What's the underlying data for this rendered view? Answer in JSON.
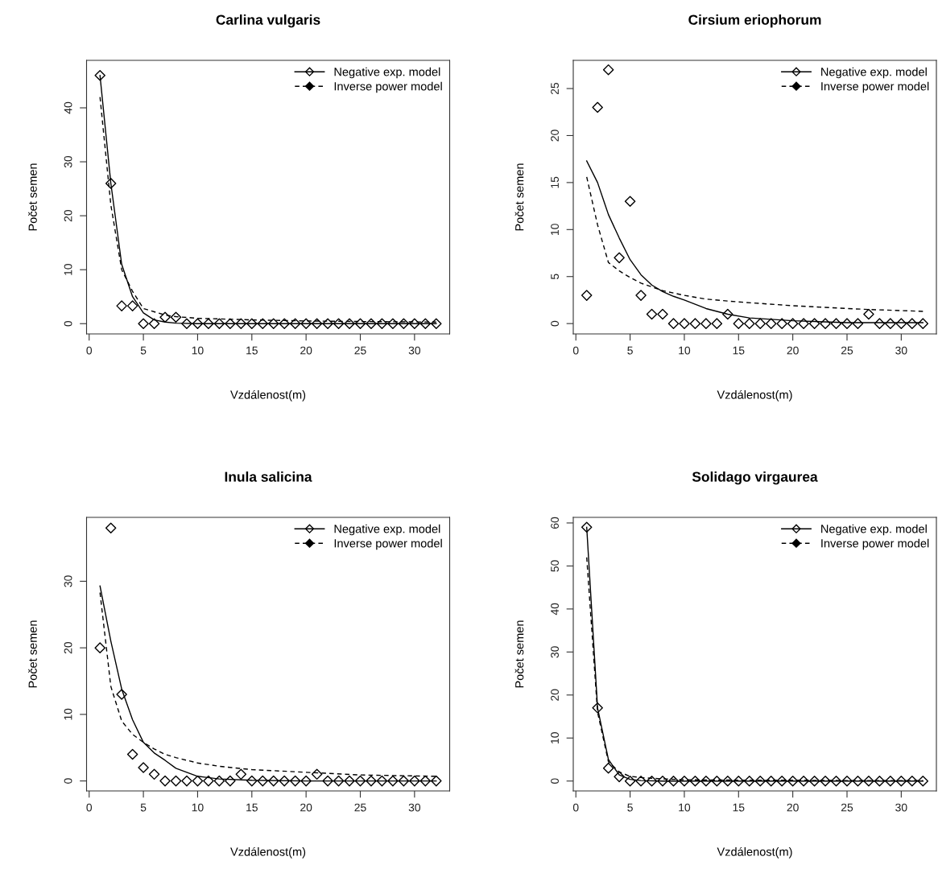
{
  "chart_data": [
    {
      "type": "line",
      "title": "Carlina vulgaris",
      "xlabel": "Vzdálenost(m)",
      "ylabel": "Počet semen",
      "xlim": [
        -0.24,
        33.24
      ],
      "xticks": [
        0,
        5,
        10,
        15,
        20,
        25,
        30
      ],
      "ylim": [
        -1.9,
        48.8
      ],
      "yticks": [
        0,
        10,
        20,
        30,
        40
      ],
      "grid": false,
      "legend": "top right",
      "series": [
        {
          "type": "scatter",
          "marker": "diamond",
          "color": "#000000",
          "x": [
            1,
            2,
            3,
            4,
            5,
            6,
            7,
            8,
            9,
            10,
            11,
            12,
            13,
            14,
            15,
            16,
            17,
            18,
            19,
            20,
            21,
            22,
            23,
            24,
            25,
            26,
            27,
            28,
            29,
            30,
            31,
            32
          ],
          "values": [
            46,
            26,
            3.3,
            3.3,
            0,
            0,
            1.2,
            1.2,
            0,
            0,
            0,
            0,
            0,
            0,
            0,
            0,
            0,
            0,
            0,
            0,
            0,
            0,
            0,
            0,
            0,
            0,
            0,
            0,
            0,
            0,
            0,
            0
          ]
        },
        {
          "name": "Negative exp. model",
          "line_style": "solid",
          "color": "#000000",
          "x": [
            1,
            2,
            3,
            4,
            5,
            6,
            7,
            8,
            10,
            15,
            20,
            25,
            32
          ],
          "values": [
            46,
            26,
            11,
            5,
            2,
            0.7,
            0.3,
            0.1,
            0,
            0,
            0,
            0,
            0
          ]
        },
        {
          "name": "Inverse power model",
          "line_style": "dashed",
          "color": "#000000",
          "x": [
            1,
            2,
            3,
            4,
            5,
            6,
            7,
            8,
            10,
            15,
            20,
            25,
            32
          ],
          "values": [
            42,
            22,
            10,
            6,
            2.8,
            2.2,
            1.6,
            1.3,
            1.0,
            0.7,
            0.5,
            0.4,
            0.3
          ]
        }
      ]
    },
    {
      "type": "line",
      "title": "Cirsium eriophorum",
      "xlabel": "Vzdálenost(m)",
      "ylabel": "Počet semen",
      "xlim": [
        -0.24,
        33.24
      ],
      "xticks": [
        0,
        5,
        10,
        15,
        20,
        25,
        30
      ],
      "ylim": [
        -1.1,
        28.0
      ],
      "yticks": [
        0,
        5,
        10,
        15,
        20,
        25
      ],
      "grid": false,
      "legend": "top right",
      "series": [
        {
          "type": "scatter",
          "marker": "diamond",
          "color": "#000000",
          "x": [
            1,
            2,
            3,
            4,
            5,
            6,
            7,
            8,
            9,
            10,
            11,
            12,
            13,
            14,
            15,
            16,
            17,
            18,
            19,
            20,
            21,
            22,
            23,
            24,
            25,
            26,
            27,
            28,
            29,
            30,
            31,
            32
          ],
          "values": [
            3,
            23,
            27,
            7,
            13,
            3,
            1,
            1,
            0,
            0,
            0,
            0,
            0,
            1,
            0,
            0,
            0,
            0,
            0,
            0,
            0,
            0,
            0,
            0,
            0,
            0,
            1,
            0,
            0,
            0,
            0,
            0
          ]
        },
        {
          "name": "Negative exp. model",
          "line_style": "solid",
          "color": "#000000",
          "x": [
            1,
            2,
            3,
            4,
            5,
            6,
            7,
            8,
            9,
            10,
            12,
            14,
            16,
            20,
            25,
            32
          ],
          "values": [
            17.3,
            15,
            11.6,
            9.1,
            6.8,
            5.2,
            4.1,
            3.4,
            2.9,
            2.5,
            1.6,
            1.0,
            0.6,
            0.3,
            0.1,
            0.1
          ]
        },
        {
          "name": "Inverse power model",
          "line_style": "dashed",
          "color": "#000000",
          "x": [
            1,
            2,
            3,
            4,
            5,
            6,
            7,
            8,
            10,
            12,
            15,
            20,
            25,
            27,
            32
          ],
          "values": [
            15.6,
            10.5,
            6.5,
            5.6,
            4.9,
            4.3,
            3.9,
            3.5,
            3.0,
            2.6,
            2.3,
            1.9,
            1.6,
            1.5,
            1.3
          ]
        }
      ]
    },
    {
      "type": "line",
      "title": "Inula salicina",
      "xlabel": "Vzdálenost(m)",
      "ylabel": "Počet semen",
      "xlim": [
        -0.24,
        33.24
      ],
      "xticks": [
        0,
        5,
        10,
        15,
        20,
        25,
        30
      ],
      "ylim": [
        -1.5,
        39.6
      ],
      "yticks": [
        0,
        10,
        20,
        30
      ],
      "grid": false,
      "legend": "top right",
      "series": [
        {
          "type": "scatter",
          "marker": "diamond",
          "color": "#000000",
          "x": [
            1,
            2,
            3,
            4,
            5,
            6,
            7,
            8,
            9,
            10,
            11,
            12,
            13,
            14,
            15,
            16,
            17,
            18,
            19,
            20,
            21,
            22,
            23,
            24,
            25,
            26,
            27,
            28,
            29,
            30,
            31,
            32
          ],
          "values": [
            20,
            38,
            13,
            4,
            2,
            1,
            0,
            0,
            0,
            0,
            0,
            0,
            0,
            1,
            0,
            0,
            0,
            0,
            0,
            0,
            1,
            0,
            0,
            0,
            0,
            0,
            0,
            0,
            0,
            0,
            0,
            0
          ]
        },
        {
          "name": "Negative exp. model",
          "line_style": "solid",
          "color": "#000000",
          "x": [
            1,
            2,
            3,
            4,
            5,
            6,
            7,
            8,
            10,
            12,
            15,
            20,
            25,
            32
          ],
          "values": [
            29.3,
            21,
            13.8,
            9.2,
            5.8,
            4.2,
            3.1,
            1.9,
            0.7,
            0.3,
            0.1,
            0,
            0,
            0
          ]
        },
        {
          "name": "Inverse power model",
          "line_style": "dashed",
          "color": "#000000",
          "x": [
            1,
            2,
            3,
            4,
            5,
            6,
            7,
            8,
            10,
            12,
            15,
            20,
            25,
            32
          ],
          "values": [
            28.3,
            14.2,
            9.0,
            7.0,
            5.8,
            4.8,
            4.0,
            3.5,
            2.7,
            2.2,
            1.7,
            1.3,
            0.9,
            0.7
          ]
        }
      ]
    },
    {
      "type": "line",
      "title": "Solidago virgaurea",
      "xlabel": "Vzdálenost(m)",
      "ylabel": "Počet semen",
      "xlim": [
        -0.24,
        33.24
      ],
      "xticks": [
        0,
        5,
        10,
        15,
        20,
        25,
        30
      ],
      "ylim": [
        -2.3,
        61.3
      ],
      "yticks": [
        0,
        10,
        20,
        30,
        40,
        50,
        60
      ],
      "grid": false,
      "legend": "top right",
      "series": [
        {
          "type": "scatter",
          "marker": "diamond",
          "color": "#000000",
          "x": [
            1,
            2,
            3,
            4,
            5,
            6,
            7,
            8,
            9,
            10,
            11,
            12,
            13,
            14,
            15,
            16,
            17,
            18,
            19,
            20,
            21,
            22,
            23,
            24,
            25,
            26,
            27,
            28,
            29,
            30,
            31,
            32
          ],
          "values": [
            59,
            17,
            3,
            1,
            0,
            0,
            0,
            0,
            0,
            0,
            0,
            0,
            0,
            0,
            0,
            0,
            0,
            0,
            0,
            0,
            0,
            0,
            0,
            0,
            0,
            0,
            0,
            0,
            0,
            0,
            0,
            0
          ]
        },
        {
          "name": "Negative exp. model",
          "line_style": "solid",
          "color": "#000000",
          "x": [
            1,
            2,
            3,
            4,
            5,
            6,
            8,
            10,
            15,
            20,
            25,
            32
          ],
          "values": [
            59,
            17,
            5,
            1.4,
            0.4,
            0.1,
            0,
            0,
            0,
            0,
            0,
            0
          ]
        },
        {
          "name": "Inverse power model",
          "line_style": "dashed",
          "color": "#000000",
          "x": [
            1,
            2,
            3,
            4,
            5,
            6,
            8,
            10,
            15,
            20,
            25,
            32
          ],
          "values": [
            52,
            16,
            4.5,
            2.1,
            1.1,
            0.8,
            0.5,
            0.3,
            0.2,
            0.2,
            0.1,
            0.1
          ]
        }
      ]
    }
  ]
}
